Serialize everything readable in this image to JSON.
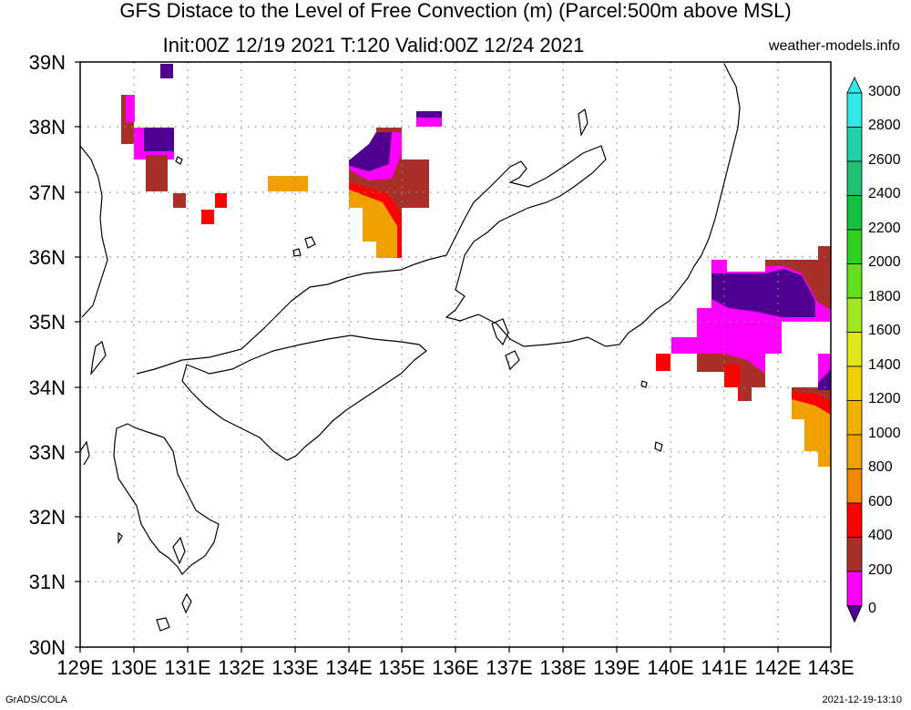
{
  "title_line1": "GFS Distace to the Level of Free Convection (m) (Parcel:500m above MSL)",
  "title_line2": "Init:00Z 12/19 2021 T:120 Valid:00Z 12/24 2021",
  "site": "weather-models.info",
  "footer_left": "GrADS/COLA",
  "footer_right": "2021-12-19-13:10",
  "lat_labels": [
    "39N",
    "38N",
    "37N",
    "36N",
    "35N",
    "34N",
    "33N",
    "32N",
    "31N",
    "30N"
  ],
  "lon_labels": [
    "129E",
    "130E",
    "131E",
    "132E",
    "133E",
    "134E",
    "135E",
    "136E",
    "137E",
    "138E",
    "139E",
    "140E",
    "141E",
    "142E",
    "143E"
  ],
  "colorbar": {
    "labels": [
      "3000",
      "2800",
      "2600",
      "2400",
      "2200",
      "2000",
      "1800",
      "1600",
      "1400",
      "1200",
      "1000",
      "800",
      "600",
      "400",
      "200",
      "0"
    ],
    "colors": [
      "#30e8e8",
      "#20d0a8",
      "#20c070",
      "#18c040",
      "#30d020",
      "#60e020",
      "#a0e820",
      "#e0e818",
      "#f0d000",
      "#f0b000",
      "#f0a000",
      "#f08800",
      "#ff0000",
      "#a83028",
      "#ff00ff",
      "#500090"
    ]
  }
}
